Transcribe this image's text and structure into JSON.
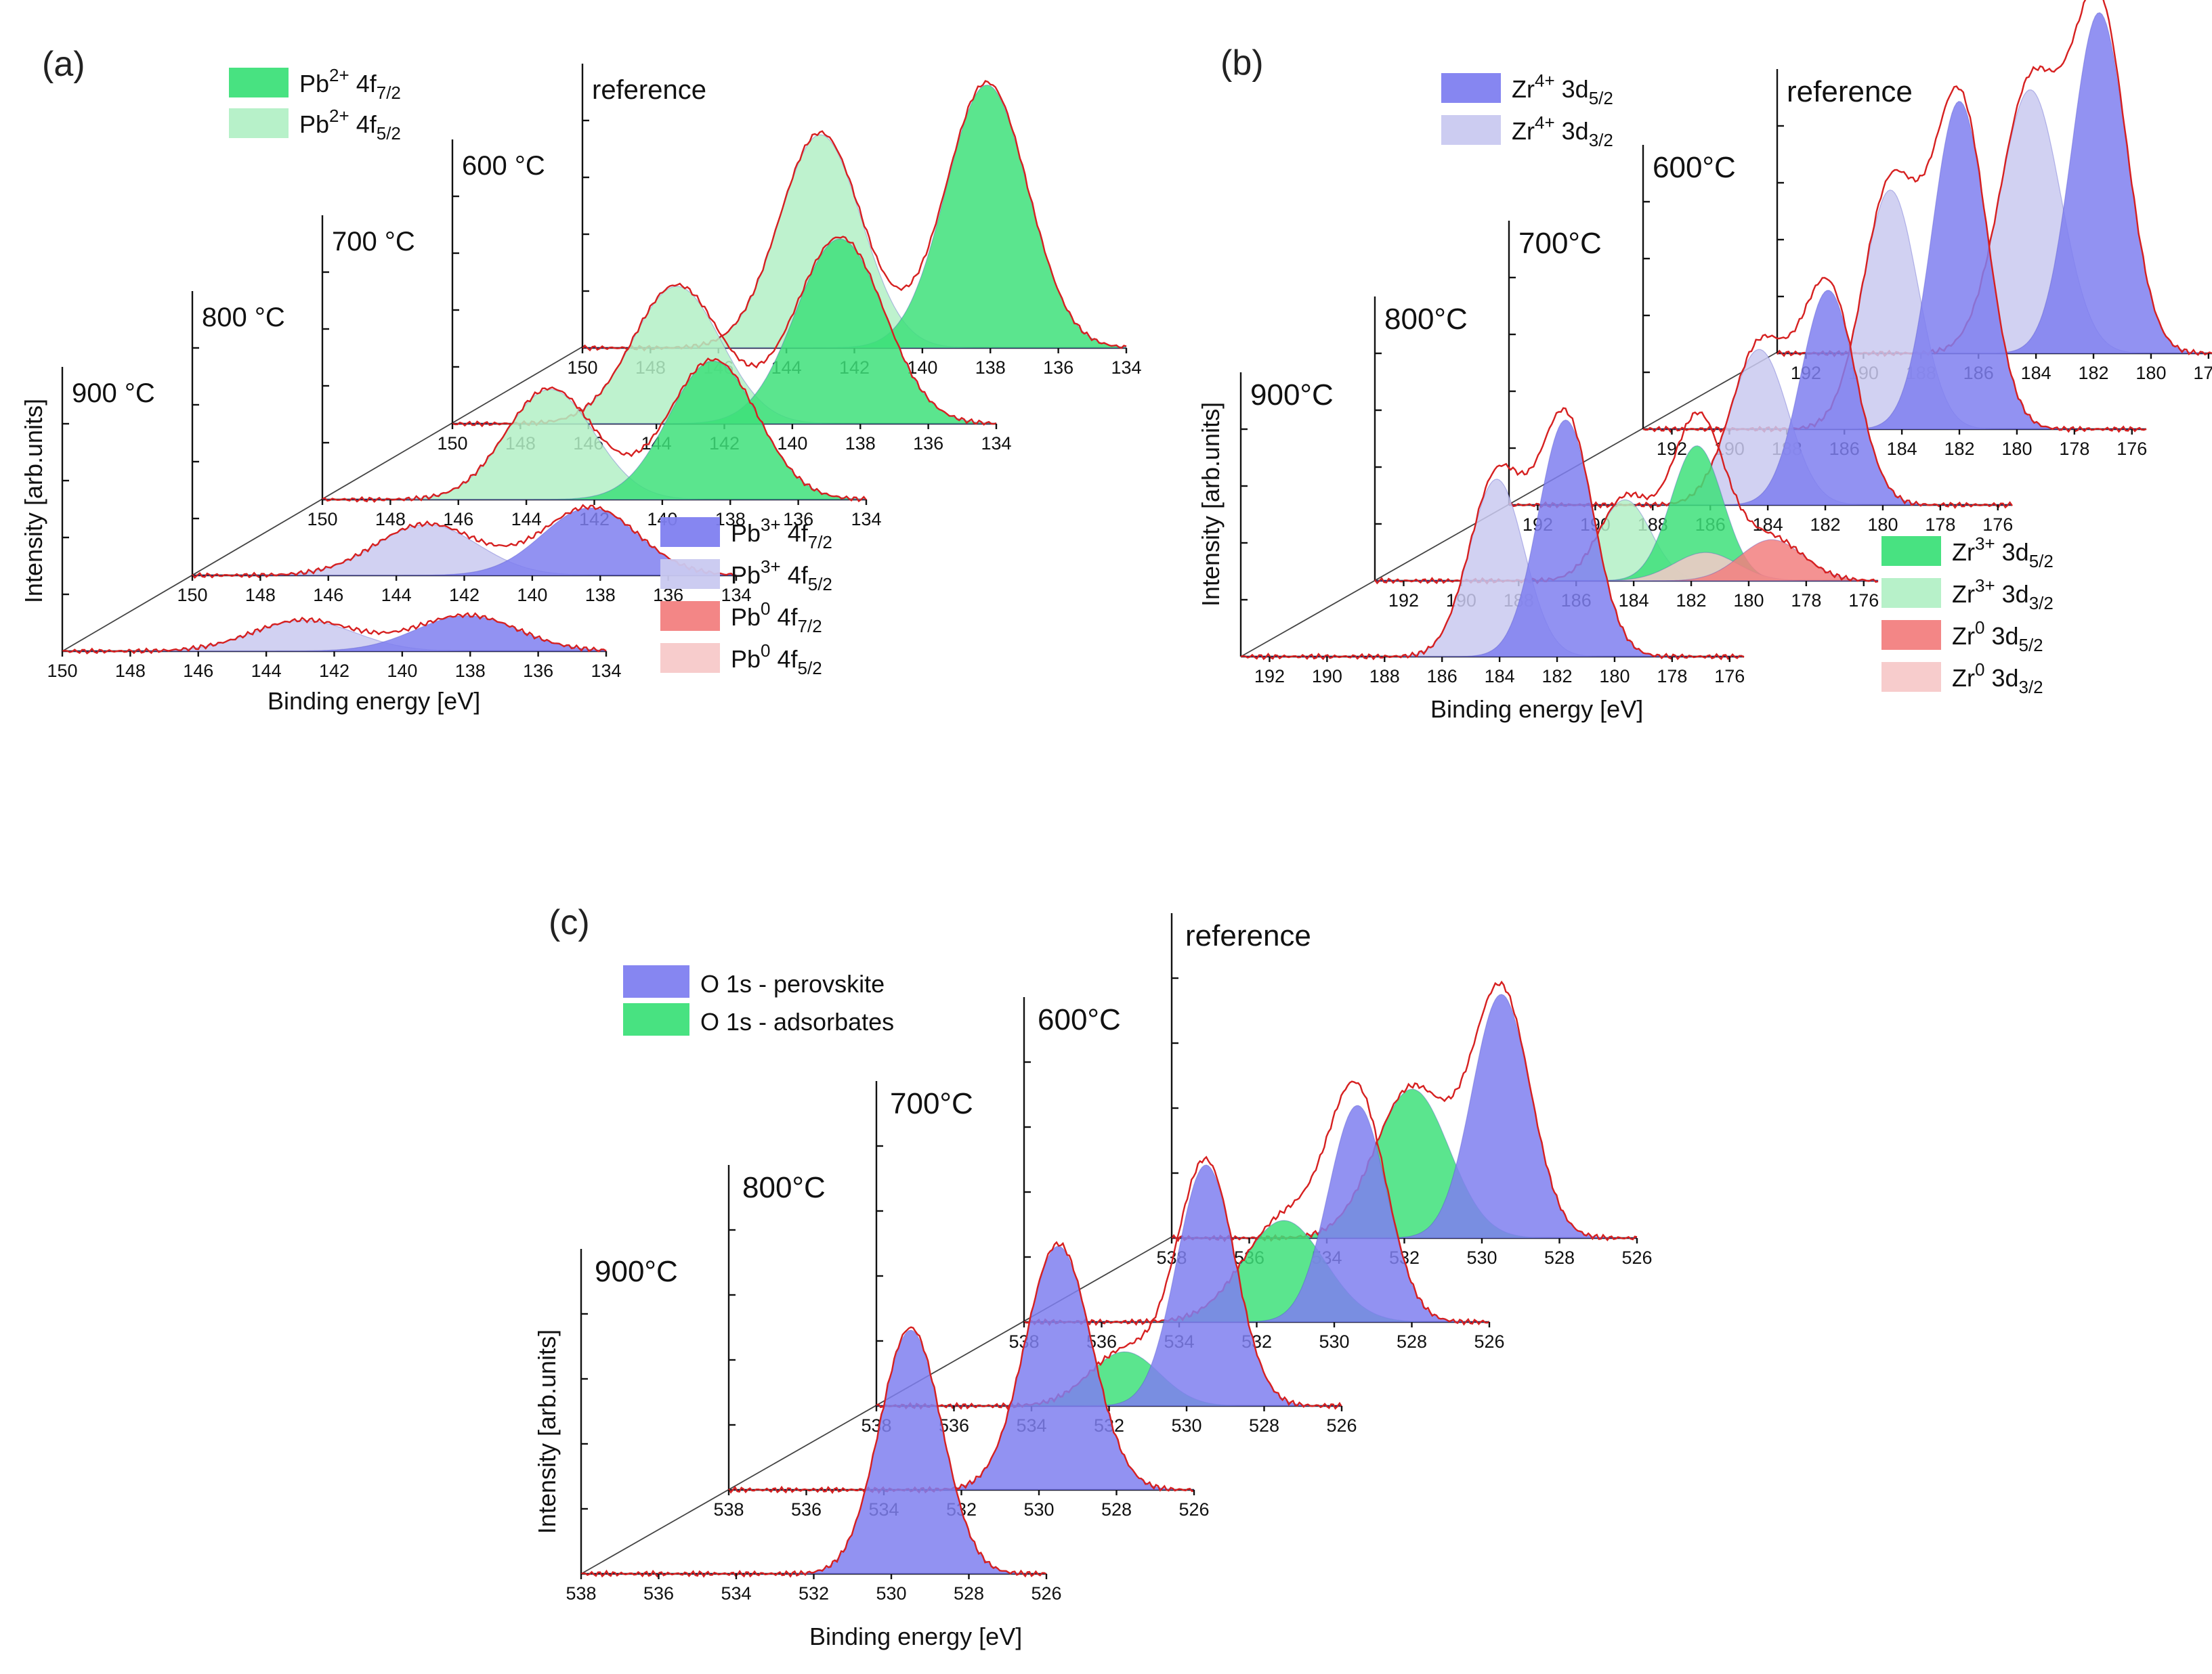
{
  "chart_data": [
    {
      "id": "a",
      "type": "area",
      "panel_label": "(a)",
      "xlabel": "Binding energy [eV]",
      "ylabel": "Intensity [arb.units]",
      "xrange": [
        150,
        134
      ],
      "x_ticks": [
        150,
        148,
        146,
        144,
        142,
        140,
        138,
        136,
        134
      ],
      "spectra": [
        {
          "label": "900 °C",
          "peaks": [
            {
              "component": "Pb3+ 4f5/2",
              "center": 142.9,
              "height": 0.26,
              "width": 1.5
            },
            {
              "component": "Pb3+ 4f7/2",
              "center": 138.1,
              "height": 0.3,
              "width": 1.5
            }
          ]
        },
        {
          "label": "800 °C",
          "peaks": [
            {
              "component": "Pb3+ 4f5/2",
              "center": 143.1,
              "height": 0.43,
              "width": 1.5
            },
            {
              "component": "Pb3+ 4f7/2",
              "center": 138.3,
              "height": 0.57,
              "width": 1.4
            }
          ]
        },
        {
          "label": "700 °C",
          "peaks": [
            {
              "component": "Pb2+ 4f5/2",
              "center": 143.3,
              "height": 0.93,
              "width": 1.3
            },
            {
              "component": "Pb2+ 4f7/2",
              "center": 138.5,
              "height": 1.17,
              "width": 1.3
            }
          ]
        },
        {
          "label": "600 °C",
          "peaks": [
            {
              "component": "Pb2+ 4f5/2",
              "center": 143.4,
              "height": 1.16,
              "width": 1.3
            },
            {
              "component": "Pb2+ 4f7/2",
              "center": 138.6,
              "height": 1.56,
              "width": 1.3
            }
          ]
        },
        {
          "label": "reference",
          "peaks": [
            {
              "component": "Pb2+ 4f5/2",
              "center": 143.0,
              "height": 1.8,
              "width": 1.2
            },
            {
              "component": "Pb2+ 4f7/2",
              "center": 138.1,
              "height": 2.22,
              "width": 1.2
            }
          ]
        }
      ],
      "legend": [
        {
          "id": "pb2-7",
          "base": "Pb",
          "sup": "2+",
          "mid": " 4f",
          "sub": "7/2",
          "color": "#3ee07a",
          "opacity": 0.95
        },
        {
          "id": "pb2-5",
          "base": "Pb",
          "sup": "2+",
          "mid": " 4f",
          "sub": "5/2",
          "color": "#b3f0c6",
          "opacity": 0.95
        },
        {
          "id": "pb3-7",
          "base": "Pb",
          "sup": "3+",
          "mid": " 4f",
          "sub": "7/2",
          "color": "#7f7ff0",
          "opacity": 0.95
        },
        {
          "id": "pb3-5",
          "base": "Pb",
          "sup": "3+",
          "mid": " 4f",
          "sub": "5/2",
          "color": "#c9c9f0",
          "opacity": 0.95
        },
        {
          "id": "pb0-7",
          "base": "Pb",
          "sup": "0",
          "mid": " 4f",
          "sub": "7/2",
          "color": "#f27f7f",
          "opacity": 0.95
        },
        {
          "id": "pb0-5",
          "base": "Pb",
          "sup": "0",
          "mid": " 4f",
          "sub": "5/2",
          "color": "#f7c9c9",
          "opacity": 0.95
        }
      ]
    },
    {
      "id": "b",
      "type": "area",
      "panel_label": "(b)",
      "xlabel": "Binding energy [eV]",
      "ylabel": "Intensity [arb.units]",
      "xrange": [
        193,
        175.5
      ],
      "x_ticks": [
        192,
        190,
        188,
        186,
        184,
        182,
        180,
        178,
        176
      ],
      "spectra": [
        {
          "label": "900°C",
          "peaks": [
            {
              "component": "Zr4+ 3d3/2",
              "center": 184.1,
              "height": 1.38,
              "width": 0.95
            },
            {
              "component": "Zr4+ 3d5/2",
              "center": 181.7,
              "height": 1.84,
              "width": 0.95
            }
          ]
        },
        {
          "label": "800°C",
          "peaks": [
            {
              "component": "Zr3+ 3d3/2",
              "center": 184.3,
              "height": 0.63,
              "width": 0.9
            },
            {
              "component": "Zr3+ 3d5/2",
              "center": 181.8,
              "height": 1.05,
              "width": 0.9
            },
            {
              "component": "Zr0 3d3/2",
              "center": 181.5,
              "height": 0.22,
              "width": 1.1
            },
            {
              "component": "Zr0 3d5/2",
              "center": 179.2,
              "height": 0.32,
              "width": 1.1
            }
          ]
        },
        {
          "label": "700°C",
          "peaks": [
            {
              "component": "Zr4+ 3d3/2",
              "center": 184.3,
              "height": 1.21,
              "width": 1.0
            },
            {
              "component": "Zr4+ 3d5/2",
              "center": 181.9,
              "height": 1.67,
              "width": 0.95
            }
          ]
        },
        {
          "label": "600°C",
          "peaks": [
            {
              "component": "Zr4+ 3d3/2",
              "center": 184.4,
              "height": 1.86,
              "width": 0.95
            },
            {
              "component": "Zr4+ 3d5/2",
              "center": 182.0,
              "height": 2.55,
              "width": 0.95
            }
          ]
        },
        {
          "label": "reference",
          "peaks": [
            {
              "component": "Zr4+ 3d3/2",
              "center": 184.2,
              "height": 2.05,
              "width": 1.05
            },
            {
              "component": "Zr4+ 3d5/2",
              "center": 181.8,
              "height": 2.65,
              "width": 0.95
            }
          ]
        }
      ],
      "legend": [
        {
          "id": "zr4-5",
          "base": "Zr",
          "sup": "4+",
          "mid": " 3d",
          "sub": "5/2",
          "color": "#7f7ff0",
          "opacity": 0.95
        },
        {
          "id": "zr4-3",
          "base": "Zr",
          "sup": "4+",
          "mid": " 3d",
          "sub": "3/2",
          "color": "#c9c9f0",
          "opacity": 0.95
        },
        {
          "id": "zr3-5",
          "base": "Zr",
          "sup": "3+",
          "mid": " 3d",
          "sub": "5/2",
          "color": "#3ee07a",
          "opacity": 0.95
        },
        {
          "id": "zr3-3",
          "base": "Zr",
          "sup": "3+",
          "mid": " 3d",
          "sub": "3/2",
          "color": "#b3f0c6",
          "opacity": 0.95
        },
        {
          "id": "zr0-5",
          "base": "Zr",
          "sup": "0",
          "mid": " 3d",
          "sub": "5/2",
          "color": "#f27f7f",
          "opacity": 0.95
        },
        {
          "id": "zr0-3",
          "base": "Zr",
          "sup": "0",
          "mid": " 3d",
          "sub": "3/2",
          "color": "#f7c9c9",
          "opacity": 0.95
        }
      ]
    },
    {
      "id": "c",
      "type": "area",
      "panel_label": "(c)",
      "xlabel": "Binding energy [eV]",
      "ylabel": "Intensity [arb.units]",
      "xrange": [
        538,
        526
      ],
      "x_ticks": [
        538,
        536,
        534,
        532,
        530,
        528,
        526
      ],
      "spectra": [
        {
          "label": "900°C",
          "peaks": [
            {
              "component": "O 1s - perovskite",
              "center": 529.5,
              "height": 1.8,
              "width": 0.8
            }
          ]
        },
        {
          "label": "800°C",
          "peaks": [
            {
              "component": "O 1s - perovskite",
              "center": 529.5,
              "height": 1.8,
              "width": 0.85
            }
          ]
        },
        {
          "label": "700°C",
          "peaks": [
            {
              "component": "O 1s - adsorbates",
              "center": 531.6,
              "height": 0.4,
              "width": 0.9
            },
            {
              "component": "O 1s - perovskite",
              "center": 529.5,
              "height": 1.78,
              "width": 0.75
            }
          ]
        },
        {
          "label": "600°C",
          "peaks": [
            {
              "component": "O 1s - adsorbates",
              "center": 531.3,
              "height": 0.75,
              "width": 1.05
            },
            {
              "component": "O 1s - perovskite",
              "center": 529.4,
              "height": 1.6,
              "width": 0.75
            }
          ]
        },
        {
          "label": "reference",
          "peaks": [
            {
              "component": "O 1s - adsorbates",
              "center": 531.8,
              "height": 1.1,
              "width": 0.95
            },
            {
              "component": "O 1s - perovskite",
              "center": 529.5,
              "height": 1.8,
              "width": 0.75
            }
          ]
        }
      ],
      "legend": [
        {
          "id": "o-per",
          "text": "O 1s - perovskite",
          "color": "#7f7ff0",
          "opacity": 0.95
        },
        {
          "id": "o-ads",
          "text": "O 1s - adsorbates",
          "color": "#3ee07a",
          "opacity": 0.95
        }
      ]
    }
  ]
}
